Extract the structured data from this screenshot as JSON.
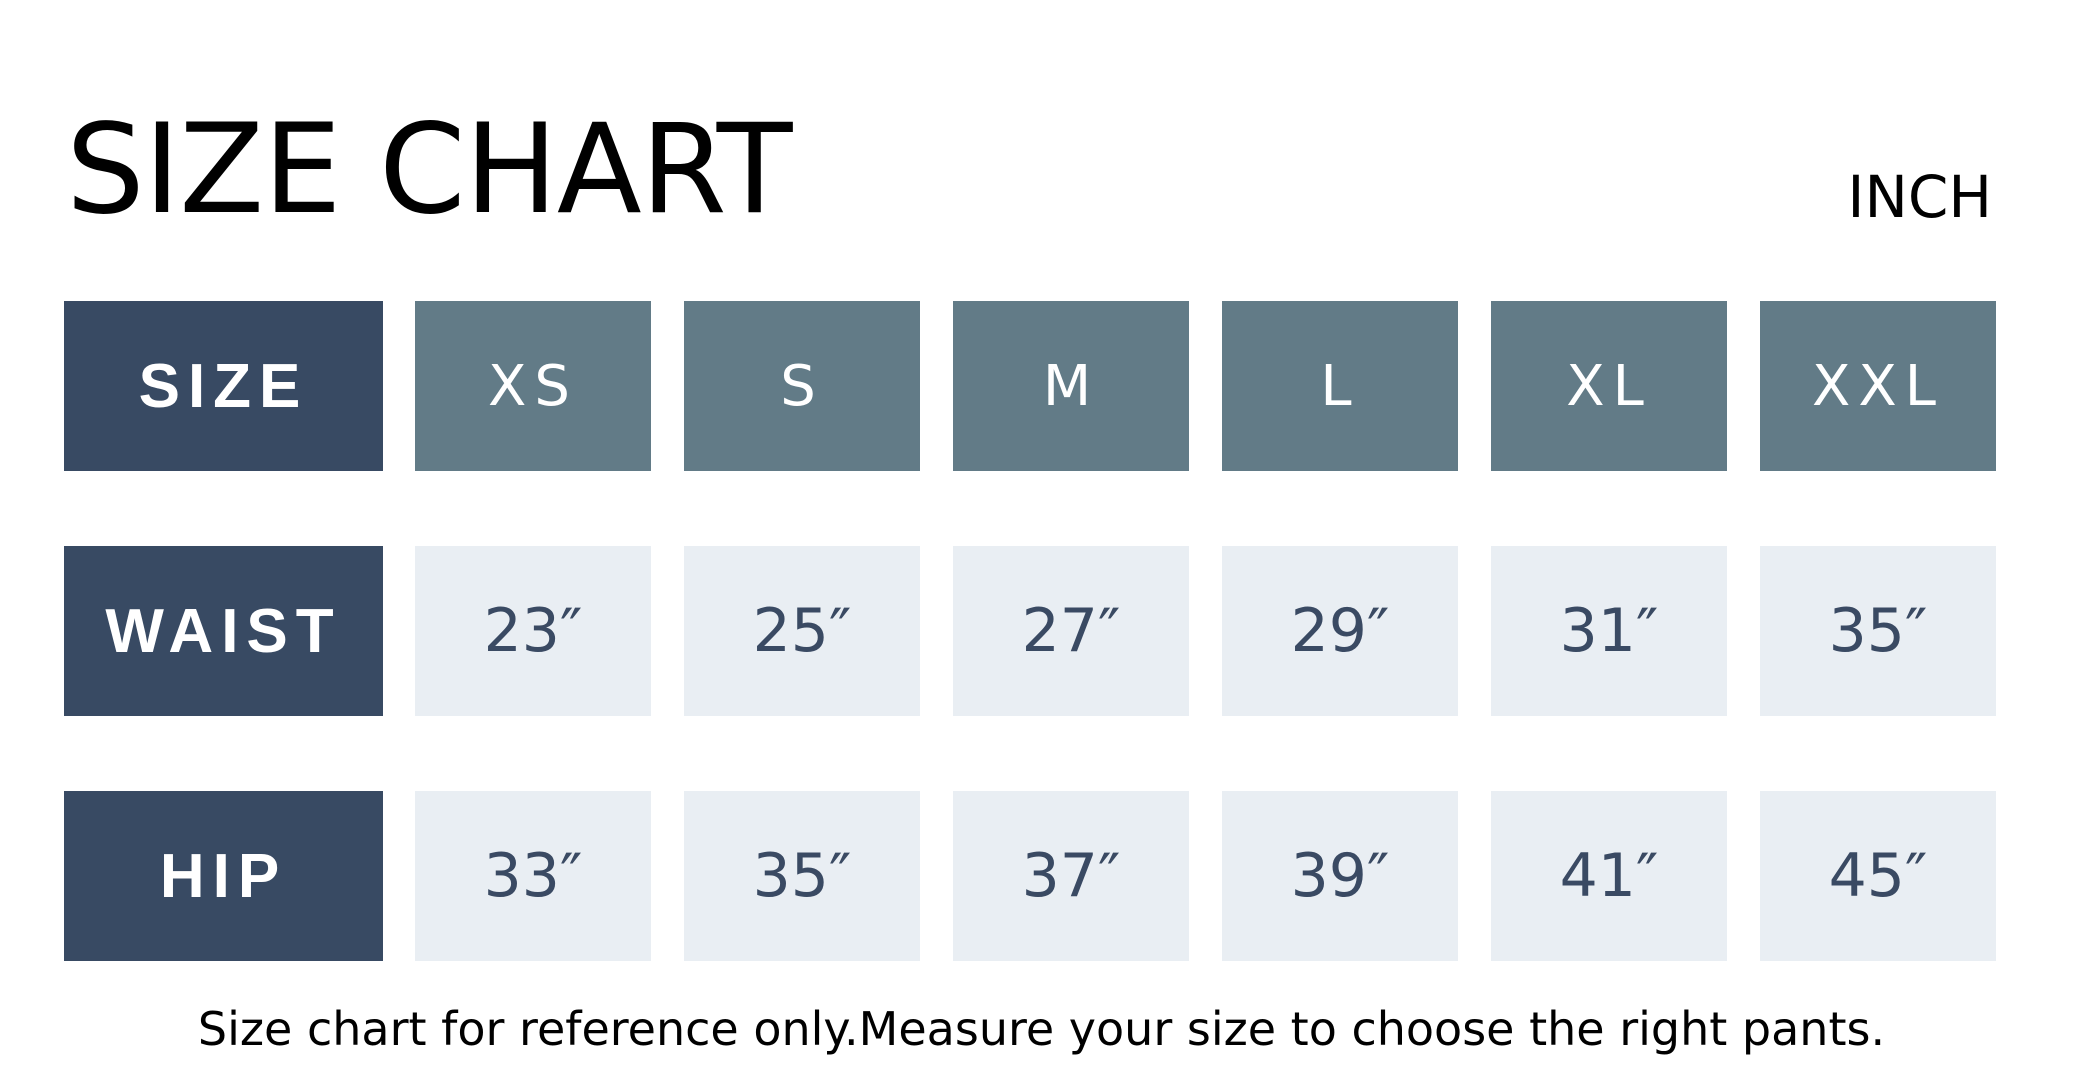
{
  "title": "SIZE CHART",
  "unit": "INCH",
  "colors": {
    "label_bg": "#384a63",
    "header_bg": "#627b87",
    "cell_bg": "#e9eef3",
    "cell_text": "#3a4a63"
  },
  "table": {
    "rows": [
      {
        "label": "SIZE",
        "values": [
          "XS",
          "S",
          "M",
          "L",
          "XL",
          "XXL"
        ]
      },
      {
        "label": "WAIST",
        "values": [
          "23″",
          "25″",
          "27″",
          "29″",
          "31″",
          "35″"
        ]
      },
      {
        "label": "HIP",
        "values": [
          "33″",
          "35″",
          "37″",
          "39″",
          "41″",
          "45″"
        ]
      }
    ]
  },
  "footer": "Size chart for reference only.Measure your size to choose the right pants."
}
